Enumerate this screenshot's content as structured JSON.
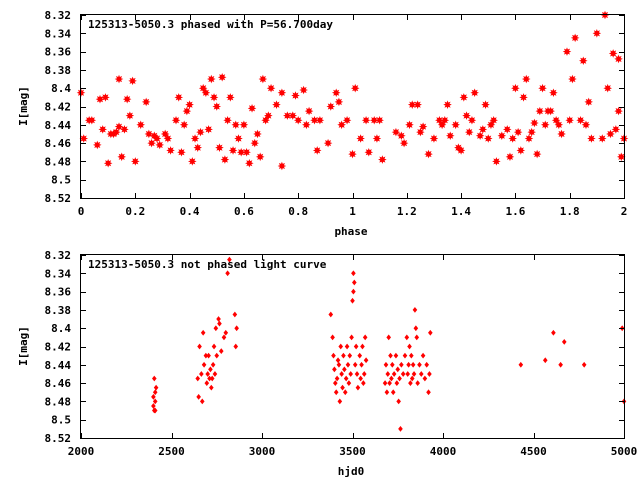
{
  "chart_data": [
    {
      "type": "scatter",
      "title": "125313-5050.3 phased with P=56.700day",
      "xlabel": "phase",
      "ylabel": "I[mag]",
      "xlim": [
        0,
        2
      ],
      "ylim": [
        8.52,
        8.32
      ],
      "y_inverted": true,
      "grid": false,
      "marker_color": "#ff0000",
      "marker": "star",
      "x_ticks": [
        "0",
        "0.2",
        "0.4",
        "0.6",
        "0.8",
        "1",
        "1.2",
        "1.4",
        "1.6",
        "1.8",
        "2"
      ],
      "y_ticks": [
        "8.32",
        "8.34",
        "8.36",
        "8.38",
        "8.4",
        "8.42",
        "8.44",
        "8.46",
        "8.48",
        "8.5",
        "8.52"
      ],
      "points": [
        [
          0.0,
          8.405
        ],
        [
          0.01,
          8.455
        ],
        [
          0.03,
          8.435
        ],
        [
          0.04,
          8.435
        ],
        [
          0.06,
          8.462
        ],
        [
          0.07,
          8.412
        ],
        [
          0.08,
          8.445
        ],
        [
          0.09,
          8.41
        ],
        [
          0.1,
          8.482
        ],
        [
          0.11,
          8.45
        ],
        [
          0.12,
          8.45
        ],
        [
          0.13,
          8.448
        ],
        [
          0.14,
          8.39
        ],
        [
          0.14,
          8.442
        ],
        [
          0.15,
          8.475
        ],
        [
          0.16,
          8.445
        ],
        [
          0.17,
          8.412
        ],
        [
          0.18,
          8.43
        ],
        [
          0.19,
          8.392
        ],
        [
          0.2,
          8.48
        ],
        [
          0.22,
          8.44
        ],
        [
          0.24,
          8.415
        ],
        [
          0.25,
          8.45
        ],
        [
          0.26,
          8.46
        ],
        [
          0.27,
          8.452
        ],
        [
          0.28,
          8.455
        ],
        [
          0.29,
          8.462
        ],
        [
          0.31,
          8.45
        ],
        [
          0.32,
          8.455
        ],
        [
          0.33,
          8.468
        ],
        [
          0.35,
          8.435
        ],
        [
          0.36,
          8.41
        ],
        [
          0.37,
          8.47
        ],
        [
          0.38,
          8.44
        ],
        [
          0.39,
          8.425
        ],
        [
          0.4,
          8.418
        ],
        [
          0.41,
          8.48
        ],
        [
          0.42,
          8.455
        ],
        [
          0.43,
          8.465
        ],
        [
          0.44,
          8.448
        ],
        [
          0.45,
          8.4
        ],
        [
          0.46,
          8.405
        ],
        [
          0.47,
          8.445
        ],
        [
          0.48,
          8.39
        ],
        [
          0.49,
          8.41
        ],
        [
          0.5,
          8.42
        ],
        [
          0.51,
          8.465
        ],
        [
          0.52,
          8.388
        ],
        [
          0.53,
          8.478
        ],
        [
          0.54,
          8.435
        ],
        [
          0.55,
          8.41
        ],
        [
          0.56,
          8.468
        ],
        [
          0.57,
          8.44
        ],
        [
          0.58,
          8.455
        ],
        [
          0.59,
          8.47
        ],
        [
          0.6,
          8.44
        ],
        [
          0.61,
          8.47
        ],
        [
          0.62,
          8.482
        ],
        [
          0.63,
          8.422
        ],
        [
          0.64,
          8.46
        ],
        [
          0.65,
          8.45
        ],
        [
          0.66,
          8.475
        ],
        [
          0.67,
          8.39
        ],
        [
          0.68,
          8.435
        ],
        [
          0.69,
          8.43
        ],
        [
          0.7,
          8.4
        ],
        [
          0.72,
          8.418
        ],
        [
          0.74,
          8.405
        ],
        [
          0.74,
          8.485
        ],
        [
          0.76,
          8.43
        ],
        [
          0.78,
          8.43
        ],
        [
          0.79,
          8.408
        ],
        [
          0.8,
          8.435
        ],
        [
          0.82,
          8.402
        ],
        [
          0.83,
          8.44
        ],
        [
          0.84,
          8.425
        ],
        [
          0.86,
          8.435
        ],
        [
          0.87,
          8.468
        ],
        [
          0.88,
          8.435
        ],
        [
          0.91,
          8.46
        ],
        [
          0.92,
          8.42
        ],
        [
          0.94,
          8.405
        ],
        [
          0.95,
          8.415
        ],
        [
          0.96,
          8.44
        ],
        [
          0.98,
          8.435
        ],
        [
          1.0,
          8.472
        ],
        [
          1.01,
          8.4
        ],
        [
          1.03,
          8.455
        ],
        [
          1.05,
          8.435
        ],
        [
          1.06,
          8.47
        ],
        [
          1.08,
          8.435
        ],
        [
          1.09,
          8.455
        ],
        [
          1.1,
          8.435
        ],
        [
          1.11,
          8.478
        ],
        [
          1.16,
          8.448
        ],
        [
          1.18,
          8.452
        ],
        [
          1.19,
          8.46
        ],
        [
          1.21,
          8.44
        ],
        [
          1.22,
          8.418
        ],
        [
          1.24,
          8.418
        ],
        [
          1.25,
          8.448
        ],
        [
          1.26,
          8.442
        ],
        [
          1.28,
          8.472
        ],
        [
          1.3,
          8.455
        ],
        [
          1.32,
          8.435
        ],
        [
          1.33,
          8.44
        ],
        [
          1.34,
          8.435
        ],
        [
          1.35,
          8.418
        ],
        [
          1.36,
          8.452
        ],
        [
          1.38,
          8.44
        ],
        [
          1.39,
          8.465
        ],
        [
          1.4,
          8.468
        ],
        [
          1.41,
          8.41
        ],
        [
          1.42,
          8.43
        ],
        [
          1.43,
          8.448
        ],
        [
          1.44,
          8.435
        ],
        [
          1.45,
          8.405
        ],
        [
          1.47,
          8.452
        ],
        [
          1.48,
          8.445
        ],
        [
          1.49,
          8.418
        ],
        [
          1.5,
          8.455
        ],
        [
          1.51,
          8.44
        ],
        [
          1.52,
          8.435
        ],
        [
          1.53,
          8.48
        ],
        [
          1.55,
          8.452
        ],
        [
          1.57,
          8.445
        ],
        [
          1.58,
          8.475
        ],
        [
          1.59,
          8.455
        ],
        [
          1.6,
          8.4
        ],
        [
          1.61,
          8.448
        ],
        [
          1.62,
          8.468
        ],
        [
          1.63,
          8.41
        ],
        [
          1.64,
          8.39
        ],
        [
          1.65,
          8.455
        ],
        [
          1.66,
          8.448
        ],
        [
          1.67,
          8.438
        ],
        [
          1.68,
          8.472
        ],
        [
          1.69,
          8.425
        ],
        [
          1.7,
          8.4
        ],
        [
          1.71,
          8.44
        ],
        [
          1.72,
          8.425
        ],
        [
          1.73,
          8.425
        ],
        [
          1.74,
          8.405
        ],
        [
          1.75,
          8.435
        ],
        [
          1.76,
          8.44
        ],
        [
          1.77,
          8.45
        ],
        [
          1.79,
          8.36
        ],
        [
          1.8,
          8.435
        ],
        [
          1.81,
          8.39
        ],
        [
          1.82,
          8.345
        ],
        [
          1.84,
          8.435
        ],
        [
          1.85,
          8.37
        ],
        [
          1.86,
          8.44
        ],
        [
          1.87,
          8.415
        ],
        [
          1.88,
          8.455
        ],
        [
          1.9,
          8.34
        ],
        [
          1.92,
          8.455
        ],
        [
          1.93,
          8.32
        ],
        [
          1.94,
          8.4
        ],
        [
          1.95,
          8.45
        ],
        [
          1.96,
          8.362
        ],
        [
          1.97,
          8.445
        ],
        [
          1.98,
          8.425
        ],
        [
          1.98,
          8.368
        ],
        [
          1.99,
          8.475
        ],
        [
          2.0,
          8.455
        ]
      ]
    },
    {
      "type": "scatter",
      "title": "125313-5050.3 not phased light curve",
      "xlabel": "hjd0",
      "ylabel": "I[mag]",
      "xlim": [
        2000,
        5000
      ],
      "ylim": [
        8.52,
        8.32
      ],
      "y_inverted": true,
      "grid": false,
      "marker_color": "#ff0000",
      "marker": "diamond",
      "x_ticks": [
        "2000",
        "2500",
        "3000",
        "3500",
        "4000",
        "4500",
        "5000"
      ],
      "y_ticks": [
        "8.32",
        "8.34",
        "8.36",
        "8.38",
        "8.4",
        "8.42",
        "8.44",
        "8.46",
        "8.48",
        "8.5",
        "8.52"
      ],
      "points": [
        [
          2400,
          8.475
        ],
        [
          2400,
          8.485
        ],
        [
          2405,
          8.49
        ],
        [
          2405,
          8.455
        ],
        [
          2410,
          8.47
        ],
        [
          2410,
          8.48
        ],
        [
          2410,
          8.49
        ],
        [
          2415,
          8.465
        ],
        [
          2645,
          8.455
        ],
        [
          2650,
          8.475
        ],
        [
          2655,
          8.42
        ],
        [
          2665,
          8.45
        ],
        [
          2670,
          8.48
        ],
        [
          2675,
          8.405
        ],
        [
          2680,
          8.44
        ],
        [
          2690,
          8.43
        ],
        [
          2695,
          8.46
        ],
        [
          2700,
          8.45
        ],
        [
          2705,
          8.43
        ],
        [
          2710,
          8.455
        ],
        [
          2715,
          8.445
        ],
        [
          2720,
          8.465
        ],
        [
          2725,
          8.455
        ],
        [
          2730,
          8.44
        ],
        [
          2735,
          8.42
        ],
        [
          2740,
          8.45
        ],
        [
          2745,
          8.4
        ],
        [
          2750,
          8.43
        ],
        [
          2760,
          8.39
        ],
        [
          2765,
          8.395
        ],
        [
          2775,
          8.425
        ],
        [
          2790,
          8.41
        ],
        [
          2800,
          8.405
        ],
        [
          2810,
          8.34
        ],
        [
          2820,
          8.325
        ],
        [
          2850,
          8.385
        ],
        [
          2855,
          8.42
        ],
        [
          2860,
          8.4
        ],
        [
          3380,
          8.385
        ],
        [
          3390,
          8.41
        ],
        [
          3395,
          8.43
        ],
        [
          3400,
          8.445
        ],
        [
          3405,
          8.46
        ],
        [
          3410,
          8.47
        ],
        [
          3415,
          8.455
        ],
        [
          3420,
          8.435
        ],
        [
          3425,
          8.44
        ],
        [
          3430,
          8.48
        ],
        [
          3435,
          8.42
        ],
        [
          3440,
          8.45
        ],
        [
          3445,
          8.465
        ],
        [
          3450,
          8.43
        ],
        [
          3455,
          8.445
        ],
        [
          3460,
          8.47
        ],
        [
          3465,
          8.455
        ],
        [
          3470,
          8.42
        ],
        [
          3475,
          8.44
        ],
        [
          3480,
          8.46
        ],
        [
          3485,
          8.43
        ],
        [
          3490,
          8.45
        ],
        [
          3495,
          8.41
        ],
        [
          3500,
          8.37
        ],
        [
          3505,
          8.36
        ],
        [
          3505,
          8.34
        ],
        [
          3510,
          8.35
        ],
        [
          3515,
          8.44
        ],
        [
          3520,
          8.42
        ],
        [
          3525,
          8.45
        ],
        [
          3530,
          8.465
        ],
        [
          3540,
          8.43
        ],
        [
          3545,
          8.455
        ],
        [
          3550,
          8.44
        ],
        [
          3555,
          8.42
        ],
        [
          3560,
          8.46
        ],
        [
          3565,
          8.45
        ],
        [
          3570,
          8.41
        ],
        [
          3575,
          8.435
        ],
        [
          3680,
          8.46
        ],
        [
          3685,
          8.44
        ],
        [
          3690,
          8.47
        ],
        [
          3695,
          8.45
        ],
        [
          3700,
          8.41
        ],
        [
          3705,
          8.46
        ],
        [
          3710,
          8.43
        ],
        [
          3715,
          8.455
        ],
        [
          3720,
          8.44
        ],
        [
          3725,
          8.47
        ],
        [
          3730,
          8.45
        ],
        [
          3740,
          8.43
        ],
        [
          3745,
          8.46
        ],
        [
          3750,
          8.445
        ],
        [
          3755,
          8.48
        ],
        [
          3760,
          8.455
        ],
        [
          3765,
          8.51
        ],
        [
          3770,
          8.44
        ],
        [
          3780,
          8.45
        ],
        [
          3790,
          8.43
        ],
        [
          3800,
          8.41
        ],
        [
          3805,
          8.45
        ],
        [
          3810,
          8.44
        ],
        [
          3815,
          8.42
        ],
        [
          3820,
          8.46
        ],
        [
          3825,
          8.43
        ],
        [
          3830,
          8.455
        ],
        [
          3835,
          8.44
        ],
        [
          3840,
          8.45
        ],
        [
          3845,
          8.38
        ],
        [
          3850,
          8.4
        ],
        [
          3855,
          8.41
        ],
        [
          3860,
          8.46
        ],
        [
          3870,
          8.44
        ],
        [
          3880,
          8.45
        ],
        [
          3890,
          8.43
        ],
        [
          3900,
          8.455
        ],
        [
          3910,
          8.44
        ],
        [
          3920,
          8.47
        ],
        [
          3925,
          8.45
        ],
        [
          3930,
          8.405
        ],
        [
          4430,
          8.44
        ],
        [
          4565,
          8.435
        ],
        [
          4610,
          8.405
        ],
        [
          4650,
          8.44
        ],
        [
          4670,
          8.415
        ],
        [
          4780,
          8.44
        ],
        [
          4990,
          8.4
        ],
        [
          5000,
          8.48
        ]
      ]
    }
  ]
}
